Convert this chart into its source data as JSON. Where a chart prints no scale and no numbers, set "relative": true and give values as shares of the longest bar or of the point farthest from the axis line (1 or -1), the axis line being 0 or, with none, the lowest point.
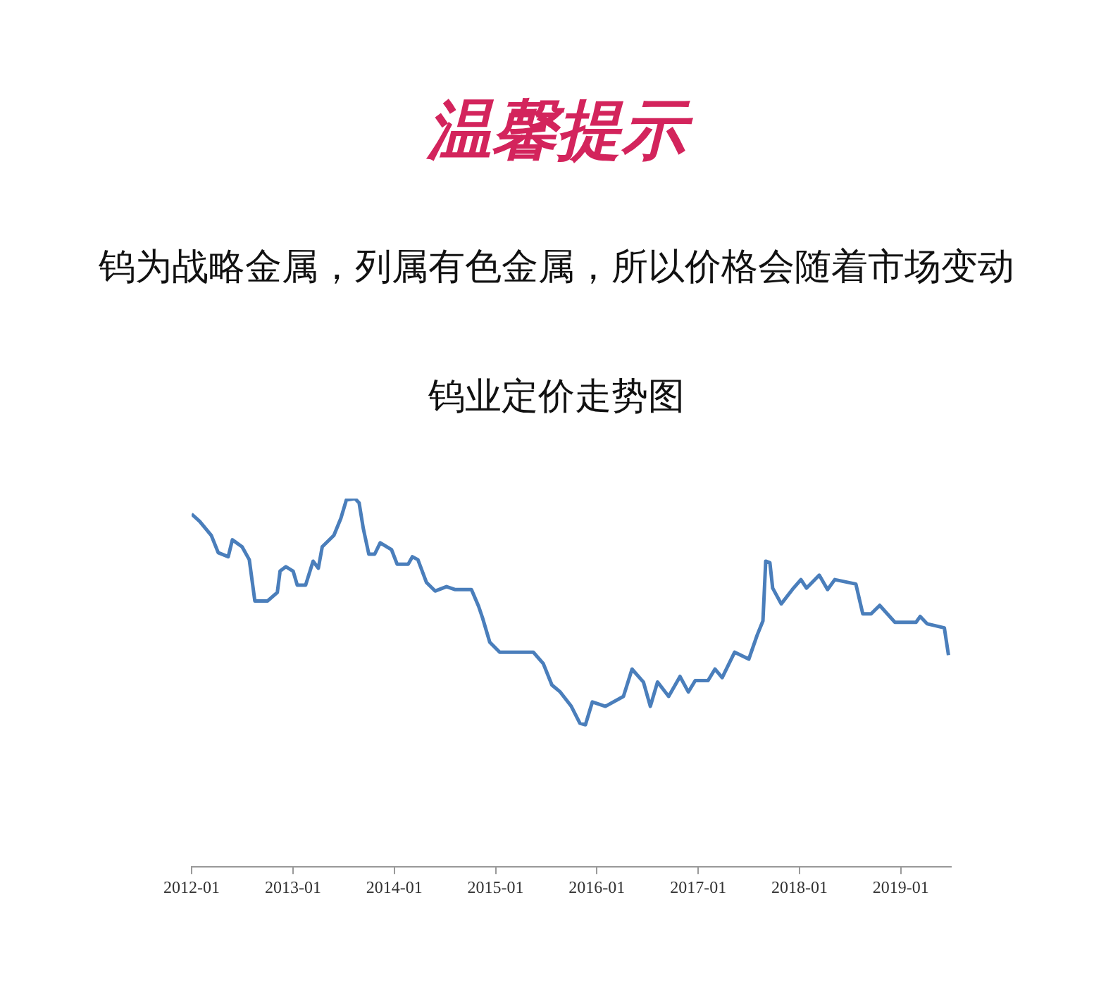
{
  "chart_data": {
    "type": "line",
    "title": "钨业定价走势图",
    "annotations": [
      "温馨提示",
      "钨为战略金属，列属有色金属，所以价格会随着市场变动"
    ],
    "relative": true,
    "xlim": [
      "2012-01",
      "2019-07"
    ],
    "xticks": [
      "2012-01",
      "2013-01",
      "2014-01",
      "2015-01",
      "2016-01",
      "2017-01",
      "2018-01",
      "2019-01"
    ],
    "marker": "none",
    "legend": false,
    "x": [
      "2012-01-01",
      "2012-01-30",
      "2012-03-12",
      "2012-04-06",
      "2012-05-12",
      "2012-05-27",
      "2012-07-01",
      "2012-07-27",
      "2012-08-16",
      "2012-10-01",
      "2012-11-05",
      "2012-11-15",
      "2012-12-06",
      "2013-01-01",
      "2013-01-16",
      "2013-02-15",
      "2013-03-14",
      "2013-04-02",
      "2013-04-16",
      "2013-05-28",
      "2013-06-22",
      "2013-07-12",
      "2013-08-12",
      "2013-08-27",
      "2013-09-11",
      "2013-10-01",
      "2013-10-22",
      "2013-11-11",
      "2013-12-22",
      "2014-01-11",
      "2014-02-20",
      "2014-03-07",
      "2014-03-27",
      "2014-04-27",
      "2014-05-28",
      "2014-07-08",
      "2014-08-07",
      "2014-10-06",
      "2014-11-01",
      "2014-11-15",
      "2014-12-11",
      "2015-01-16",
      "2015-05-17",
      "2015-06-22",
      "2015-07-23",
      "2015-08-22",
      "2015-10-01",
      "2015-11-01",
      "2015-11-21",
      "2015-12-16",
      "2016-02-01",
      "2016-04-06",
      "2016-05-07",
      "2016-06-17",
      "2016-07-12",
      "2016-08-07",
      "2016-09-16",
      "2016-10-27",
      "2016-11-26",
      "2016-12-21",
      "2017-02-05",
      "2017-03-02",
      "2017-03-28",
      "2017-05-12",
      "2017-07-02",
      "2017-08-01",
      "2017-08-22",
      "2017-09-01",
      "2017-09-16",
      "2017-09-26",
      "2017-10-27",
      "2017-12-06",
      "2018-01-06",
      "2018-01-26",
      "2018-03-13",
      "2018-04-12",
      "2018-05-08",
      "2018-07-23",
      "2018-08-17",
      "2018-09-16",
      "2018-10-17",
      "2018-12-11",
      "2019-02-25",
      "2019-03-12",
      "2019-04-06",
      "2019-06-07",
      "2019-06-22"
    ],
    "series": [
      {
        "color": "#4a7ebb",
        "values": [
          0.958,
          0.938,
          0.9,
          0.853,
          0.842,
          0.888,
          0.869,
          0.834,
          0.722,
          0.722,
          0.745,
          0.803,
          0.815,
          0.803,
          0.765,
          0.765,
          0.83,
          0.811,
          0.869,
          0.9,
          0.946,
          0.996,
          1,
          0.988,
          0.919,
          0.849,
          0.849,
          0.88,
          0.861,
          0.822,
          0.822,
          0.842,
          0.834,
          0.772,
          0.749,
          0.761,
          0.753,
          0.753,
          0.707,
          0.676,
          0.61,
          0.583,
          0.583,
          0.552,
          0.494,
          0.475,
          0.436,
          0.39,
          0.386,
          0.448,
          0.436,
          0.463,
          0.537,
          0.502,
          0.436,
          0.502,
          0.463,
          0.517,
          0.475,
          0.506,
          0.506,
          0.537,
          0.514,
          0.583,
          0.564,
          0.629,
          0.668,
          0.83,
          0.826,
          0.757,
          0.714,
          0.753,
          0.78,
          0.757,
          0.792,
          0.753,
          0.78,
          0.768,
          0.687,
          0.687,
          0.71,
          0.664,
          0.664,
          0.68,
          0.66,
          0.649,
          0.575
        ]
      }
    ]
  }
}
